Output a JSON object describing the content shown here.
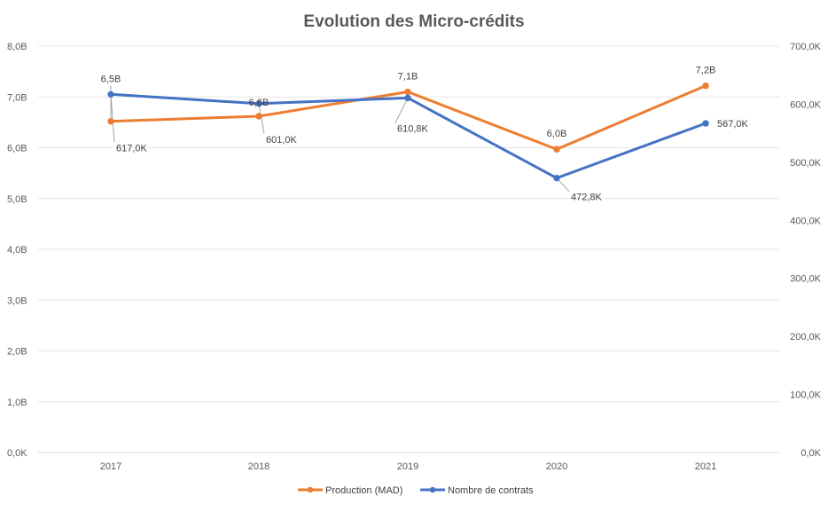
{
  "chart_data": {
    "type": "line",
    "title": "Evolution  des Micro-crédits",
    "categories": [
      "2017",
      "2018",
      "2019",
      "2020",
      "2021"
    ],
    "y_left": {
      "range": [
        0,
        8
      ],
      "ticks": [
        0,
        1,
        2,
        3,
        4,
        5,
        6,
        7,
        8
      ],
      "tick_labels": [
        "0,0K",
        "1,0B",
        "2,0B",
        "3,0B",
        "4,0B",
        "5,0B",
        "6,0B",
        "7,0B",
        "8,0B"
      ]
    },
    "y_right": {
      "range": [
        0,
        700
      ],
      "ticks": [
        0,
        100,
        200,
        300,
        400,
        500,
        600,
        700
      ],
      "tick_labels": [
        "0,0K",
        "100,0K",
        "200,0K",
        "300,0K",
        "400,0K",
        "500,0K",
        "600,0K",
        "700,0K"
      ]
    },
    "grid": "horizontal",
    "legend_position": "bottom",
    "series": [
      {
        "name": "Production (MAD)",
        "axis": "left",
        "color": "#ED7D31",
        "values": [
          6.52,
          6.62,
          7.1,
          5.97,
          7.22
        ],
        "labels": [
          "6,5B",
          "6,6B",
          "7,1B",
          "6,0B",
          "7,2B"
        ]
      },
      {
        "name": "Nombre de contrats",
        "axis": "right",
        "color": "#4472C4",
        "values": [
          617.0,
          601.0,
          610.8,
          472.8,
          567.0
        ],
        "labels": [
          "617,0K",
          "601,0K",
          "610,8K",
          "472,8K",
          "567,0K"
        ]
      }
    ]
  }
}
